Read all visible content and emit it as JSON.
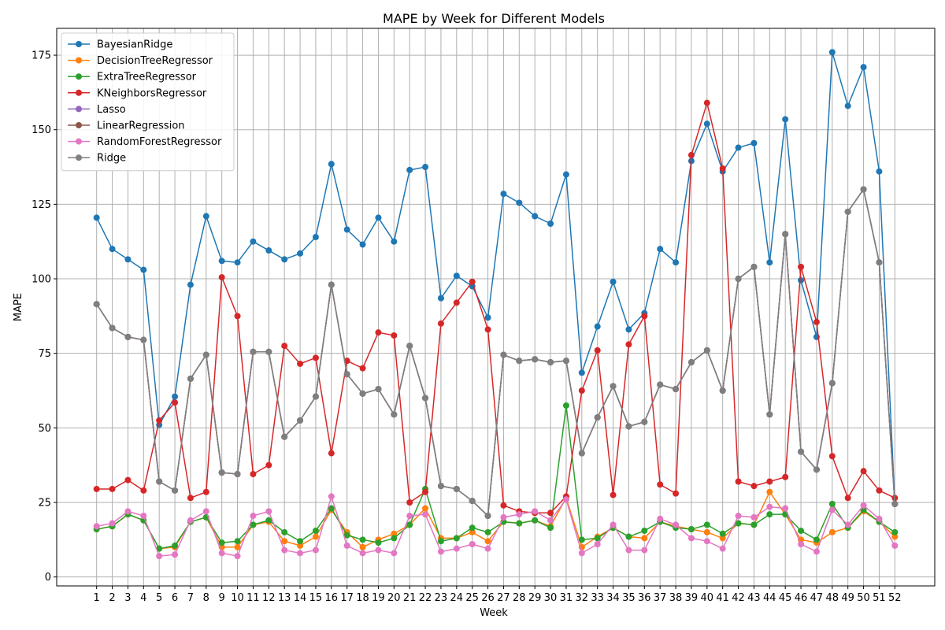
{
  "chart_data": {
    "type": "line",
    "title": "MAPE by Week for Different Models",
    "xlabel": "Week",
    "ylabel": "MAPE",
    "x": [
      1,
      2,
      3,
      4,
      5,
      6,
      7,
      8,
      9,
      10,
      11,
      12,
      13,
      14,
      15,
      16,
      17,
      18,
      19,
      20,
      21,
      22,
      23,
      24,
      25,
      26,
      27,
      28,
      29,
      30,
      31,
      32,
      33,
      34,
      35,
      36,
      37,
      38,
      39,
      40,
      41,
      42,
      43,
      44,
      45,
      46,
      47,
      48,
      49,
      50,
      51,
      52
    ],
    "xlim": [
      -1.55,
      54.55
    ],
    "ylim": [
      -3,
      184
    ],
    "yticks": [
      0,
      25,
      50,
      75,
      100,
      125,
      150,
      175
    ],
    "grid": true,
    "legend_position": "top-left",
    "series": [
      {
        "name": "BayesianRidge",
        "color": "#1f77b4",
        "values": [
          120.5,
          110,
          106.5,
          103,
          51,
          60.5,
          98,
          121,
          106,
          105.5,
          112.5,
          109.5,
          106.5,
          108.5,
          114,
          138.5,
          116.5,
          111.5,
          120.5,
          112.5,
          136.5,
          137.5,
          93.5,
          101,
          97.5,
          87,
          128.5,
          125.5,
          121,
          118.5,
          135,
          68.5,
          84,
          99,
          83,
          88.5,
          110,
          105.5,
          139.5,
          152,
          136,
          144,
          145.5,
          105.5,
          153.5,
          99.5,
          80.5,
          176,
          158,
          171,
          136,
          24.5
        ]
      },
      {
        "name": "DecisionTreeRegressor",
        "color": "#ff7f0e",
        "values": [
          16,
          17,
          21,
          19,
          9.5,
          10,
          18.5,
          20,
          10,
          10,
          17.5,
          18.5,
          12,
          10.5,
          13.5,
          22.5,
          15,
          10,
          12.5,
          14.5,
          17.5,
          23,
          13,
          13,
          15,
          12,
          18.5,
          18,
          19,
          17,
          26.5,
          10,
          13.5,
          16.5,
          13.5,
          13,
          18.5,
          17,
          16,
          15,
          13,
          18,
          17.5,
          28.5,
          21,
          12.5,
          11.5,
          15,
          16.5,
          22,
          18.5,
          13.5
        ]
      },
      {
        "name": "ExtraTreeRegressor",
        "color": "#2ca02c",
        "values": [
          16,
          17,
          21,
          19,
          9.5,
          10.5,
          18.5,
          20,
          11.5,
          12,
          17.5,
          19,
          15,
          12,
          15.5,
          23,
          14,
          12.5,
          11.5,
          13,
          17.5,
          29.5,
          12,
          13,
          16.5,
          15,
          18.5,
          18,
          19,
          16.5,
          57.5,
          12.5,
          13,
          16.5,
          13.5,
          15.5,
          18.5,
          16.5,
          16,
          17.5,
          14.5,
          18,
          17.5,
          21,
          21,
          15.5,
          12.5,
          24.5,
          16.5,
          22.5,
          18.5,
          15
        ]
      },
      {
        "name": "KNeighborsRegressor",
        "color": "#d62728",
        "values": [
          29.5,
          29.5,
          32.5,
          29,
          52.5,
          58.5,
          26.5,
          28.5,
          100.5,
          87.5,
          34.5,
          37.5,
          77.5,
          71.5,
          73.5,
          41.5,
          72.5,
          70,
          82,
          81,
          25,
          28.5,
          85,
          92,
          99,
          83,
          24,
          22,
          21.5,
          21.5,
          27,
          62.5,
          76,
          27.5,
          78,
          87.5,
          31,
          28,
          141.5,
          159,
          137,
          32,
          30.5,
          32,
          33.5,
          104,
          85.5,
          40.5,
          26.5,
          35.5,
          29,
          26.5
        ]
      },
      {
        "name": "Lasso",
        "color": "#9467bd",
        "values": [
          91.5,
          83.5,
          80.5,
          79.5,
          32,
          29,
          66.5,
          74.5,
          35,
          34.5,
          75.5,
          75.5,
          47,
          52.5,
          60.5,
          98,
          68,
          61.5,
          63,
          54.5,
          77.5,
          60,
          30.5,
          29.5,
          25.5,
          20.5,
          74.5,
          72.5,
          73,
          72,
          72.5,
          41.5,
          53.5,
          64,
          50.5,
          52,
          64.5,
          63,
          72,
          76,
          62.5,
          100,
          104,
          54.5,
          115,
          42,
          36,
          65,
          122.5,
          130,
          105.5,
          24.5
        ]
      },
      {
        "name": "LinearRegression",
        "color": "#8c564b",
        "values": [
          91.5,
          83.5,
          80.5,
          79.5,
          32,
          29,
          66.5,
          74.5,
          35,
          34.5,
          75.5,
          75.5,
          47,
          52.5,
          60.5,
          98,
          68,
          61.5,
          63,
          54.5,
          77.5,
          60,
          30.5,
          29.5,
          25.5,
          20.5,
          74.5,
          72.5,
          73,
          72,
          72.5,
          41.5,
          53.5,
          64,
          50.5,
          52,
          64.5,
          63,
          72,
          76,
          62.5,
          100,
          104,
          54.5,
          115,
          42,
          36,
          65,
          122.5,
          130,
          105.5,
          24.5
        ]
      },
      {
        "name": "RandomForestRegressor",
        "color": "#e377c2",
        "values": [
          17,
          18,
          22,
          20.5,
          7,
          7.5,
          19,
          22,
          8,
          7,
          20.5,
          22,
          9,
          8,
          9,
          27,
          10.5,
          8,
          9,
          8,
          20.5,
          21,
          8.5,
          9.5,
          11,
          9.5,
          20,
          21,
          22,
          19,
          26,
          8,
          11,
          17.5,
          9,
          9,
          19.5,
          17.5,
          13,
          12,
          9.5,
          20.5,
          20,
          23.5,
          23,
          11,
          8.5,
          22.5,
          17.5,
          24,
          19.5,
          10.5
        ]
      },
      {
        "name": "Ridge",
        "color": "#7f7f7f",
        "values": [
          91.5,
          83.5,
          80.5,
          79.5,
          32,
          29,
          66.5,
          74.5,
          35,
          34.5,
          75.5,
          75.5,
          47,
          52.5,
          60.5,
          98,
          68,
          61.5,
          63,
          54.5,
          77.5,
          60,
          30.5,
          29.5,
          25.5,
          20.5,
          74.5,
          72.5,
          73,
          72,
          72.5,
          41.5,
          53.5,
          64,
          50.5,
          52,
          64.5,
          63,
          72,
          76,
          62.5,
          100,
          104,
          54.5,
          115,
          42,
          36,
          65,
          122.5,
          130,
          105.5,
          24.5
        ]
      }
    ]
  }
}
